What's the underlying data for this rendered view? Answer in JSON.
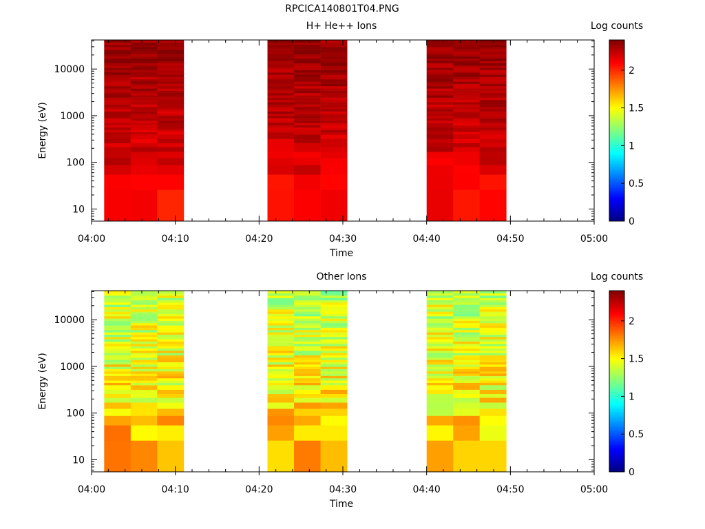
{
  "title": "RPCICA140801T04.PNG",
  "chart_data": [
    {
      "type": "heatmap",
      "title": "H+ He++ Ions",
      "xlabel": "Time",
      "ylabel": "Energy (eV)",
      "x_ticks": [
        "04:00",
        "04:10",
        "04:20",
        "04:30",
        "04:40",
        "04:50",
        "05:00"
      ],
      "y_ticks": [
        "10",
        "100",
        "1000",
        "10000"
      ],
      "y_scale": "log",
      "ylim": [
        5.5,
        42000
      ],
      "colorbar": {
        "label": "Log counts",
        "ticks": [
          "0",
          "0.5",
          "1",
          "1.5",
          "2"
        ],
        "range": [
          0,
          2.4
        ]
      },
      "time_blocks": [
        {
          "start": "04:01:30",
          "end": "04:11:00"
        },
        {
          "start": "04:21:00",
          "end": "04:30:30"
        },
        {
          "start": "04:40:00",
          "end": "04:49:30"
        }
      ],
      "value_profile": {
        "low_energy": 2.05,
        "mid_energy": 2.2,
        "high_energy": 2.35
      }
    },
    {
      "type": "heatmap",
      "title": "Other Ions",
      "xlabel": "Time",
      "ylabel": "Energy (eV)",
      "x_ticks": [
        "04:00",
        "04:10",
        "04:20",
        "04:30",
        "04:40",
        "04:50",
        "05:00"
      ],
      "y_ticks": [
        "10",
        "100",
        "1000",
        "10000"
      ],
      "y_scale": "log",
      "ylim": [
        5.5,
        42000
      ],
      "colorbar": {
        "label": "Log counts",
        "ticks": [
          "0",
          "0.5",
          "1",
          "1.5",
          "2"
        ],
        "range": [
          0,
          2.4
        ]
      },
      "time_blocks": [
        {
          "start": "04:01:30",
          "end": "04:11:00"
        },
        {
          "start": "04:21:00",
          "end": "04:30:30"
        },
        {
          "start": "04:40:00",
          "end": "04:49:30"
        }
      ],
      "value_profile": {
        "low_energy": 1.8,
        "mid_energy": 1.55,
        "high_energy": 1.35
      }
    }
  ]
}
